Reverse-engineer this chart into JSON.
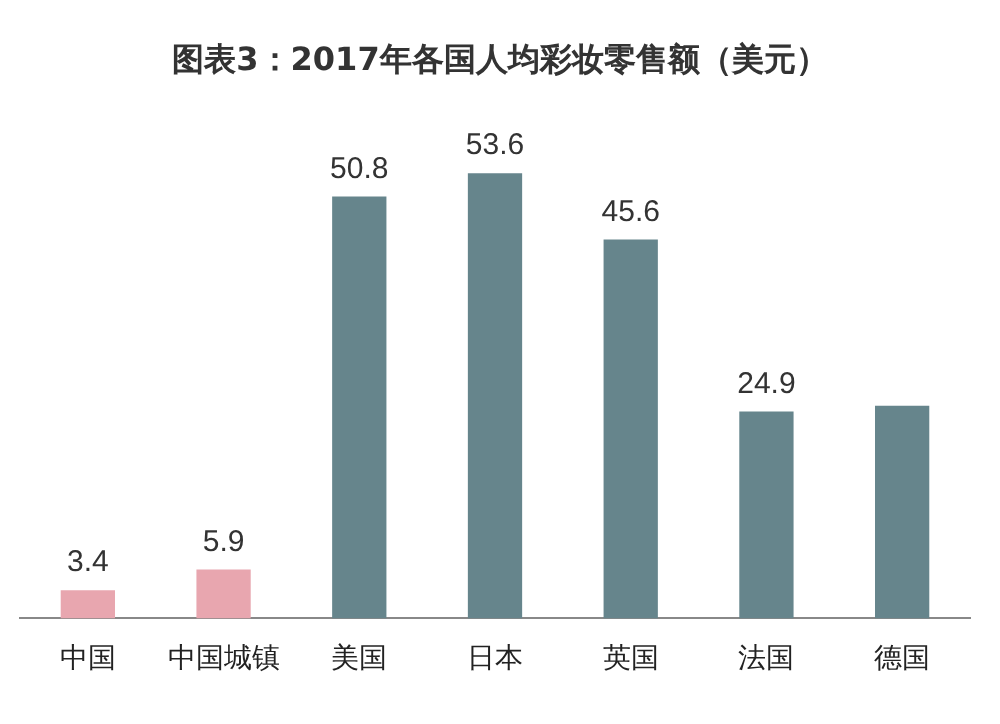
{
  "chart_data": {
    "type": "bar",
    "title": "图表3：2017年各国人均彩妆零售额（美元）",
    "categories": [
      "中国",
      "中国城镇",
      "美国",
      "日本",
      "英国",
      "法国",
      "德国"
    ],
    "values": [
      3.4,
      5.9,
      50.8,
      53.6,
      45.6,
      24.9,
      25.6
    ],
    "colors": [
      "#e8a6af",
      "#e8a6af",
      "#66858c",
      "#66858c",
      "#66858c",
      "#66858c",
      "#66858c"
    ],
    "value_labels": [
      "3.4",
      "5.9",
      "50.8",
      "53.6",
      "45.6",
      "24.9",
      null
    ],
    "grid": false,
    "legend": false
  }
}
